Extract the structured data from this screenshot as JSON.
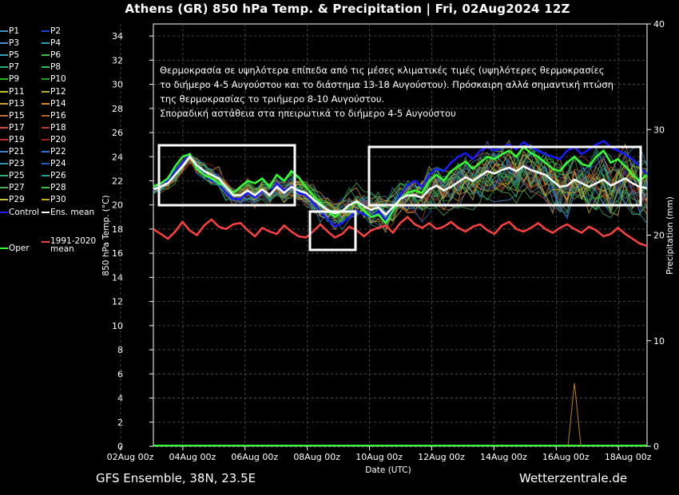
{
  "title": "Athens  (GR)  850 hPa Temp. & Precipitation | Fri, 02Aug2024 12Z",
  "footer": {
    "model": "GFS Ensemble, 38N, 23.5E",
    "source": "Wetterzentrale.de"
  },
  "colors": {
    "control": "#1a1aff",
    "ens_mean": "#ffffff",
    "climate_mean": "#ff4040",
    "oper": "#33ff33",
    "boxes": "#ffffff"
  },
  "legend": [
    {
      "label": "P1",
      "color": "#3f8fbf"
    },
    {
      "label": "P2",
      "color": "#1f3fd0"
    },
    {
      "label": "P3",
      "color": "#4a8fd0"
    },
    {
      "label": "P4",
      "color": "#2aa0b0"
    },
    {
      "label": "P5",
      "color": "#30a0c0"
    },
    {
      "label": "P6",
      "color": "#3fbf3f"
    },
    {
      "label": "P7",
      "color": "#1fb080"
    },
    {
      "label": "P8",
      "color": "#30c060"
    },
    {
      "label": "P9",
      "color": "#20c020"
    },
    {
      "label": "P10",
      "color": "#20a020"
    },
    {
      "label": "P11",
      "color": "#c0c020"
    },
    {
      "label": "P12",
      "color": "#b0b030"
    },
    {
      "label": "P13",
      "color": "#d0a030"
    },
    {
      "label": "P14",
      "color": "#d09020"
    },
    {
      "label": "P15",
      "color": "#c07030"
    },
    {
      "label": "P16",
      "color": "#c06020"
    },
    {
      "label": "P17",
      "color": "#d05030"
    },
    {
      "label": "P18",
      "color": "#b04020"
    },
    {
      "label": "P19",
      "color": "#c03030"
    },
    {
      "label": "P20",
      "color": "#a02020"
    },
    {
      "label": "P21",
      "color": "#4080c0"
    },
    {
      "label": "P22",
      "color": "#3070d0"
    },
    {
      "label": "P23",
      "color": "#3090b0"
    },
    {
      "label": "P24",
      "color": "#2060c0"
    },
    {
      "label": "P25",
      "color": "#30b070"
    },
    {
      "label": "P26",
      "color": "#20a090"
    },
    {
      "label": "P27",
      "color": "#50b050"
    },
    {
      "label": "P28",
      "color": "#40c040"
    },
    {
      "label": "P29",
      "color": "#d0c040"
    },
    {
      "label": "P30",
      "color": "#c0b020"
    },
    {
      "label": "Control",
      "color": "#1a1aff"
    },
    {
      "label": "Ens. mean",
      "color": "#ffffff"
    },
    {
      "label": "Oper",
      "color": "#33ff33"
    },
    {
      "label": "1991-2020 mean",
      "color": "#ff4040"
    }
  ],
  "annotation": [
    "Θερμοκρασία σε υψηλότερα επίπεδα από τις μέσες κλιματικές τιμές (υψηλότερες θερμοκρασίες",
    "το διήμερο 4-5 Αυγούστου και το διάστημα 13-18 Αυγούστου). Πρόσκαιρη αλλά σημαντική πτώση",
    "της θερμοκρασίας το τριήμερο 8-10 Αυγούστου.",
    "Σποραδική αστάθεια στα ηπειρωτικά το διήμερο 4-5 Αυγούστου"
  ],
  "chart_data": {
    "type": "line",
    "xlabel": "Date (UTC)",
    "ylabel": "850 hPa Temp. (°C)",
    "y2label": "Precipitation (mm)",
    "ylim": [
      0,
      35
    ],
    "y2lim": [
      0,
      40
    ],
    "yticks": [
      0,
      2,
      4,
      6,
      8,
      10,
      12,
      14,
      16,
      18,
      20,
      22,
      24,
      26,
      28,
      30,
      32,
      34
    ],
    "y2ticks": [
      0,
      10,
      20,
      30,
      40
    ],
    "x_ticks": [
      "02Aug 00z",
      "04Aug 00z",
      "06Aug 00z",
      "08Aug 00z",
      "10Aug 00z",
      "12Aug 00z",
      "14Aug 00z",
      "16Aug 00z",
      "18Aug 00z"
    ],
    "x_start": "2024-08-02T00:00Z",
    "x_step_hours": 6,
    "grid": true,
    "series": [
      {
        "name": "Ens. mean",
        "values": [
          21.3,
          21.5,
          21.8,
          22.5,
          23.2,
          24.0,
          23.3,
          22.8,
          22.5,
          22.2,
          21.5,
          20.8,
          20.8,
          21.2,
          20.8,
          21.3,
          20.8,
          21.5,
          21.0,
          21.5,
          21.2,
          21.0,
          20.5,
          20.0,
          19.6,
          19.3,
          19.5,
          20.0,
          20.3,
          19.9,
          19.6,
          19.8,
          19.2,
          19.8,
          20.5,
          20.8,
          20.8,
          20.6,
          21.3,
          21.6,
          21.2,
          21.5,
          21.9,
          22.3,
          22.0,
          22.4,
          22.8,
          22.6,
          22.9,
          23.1,
          22.8,
          23.2,
          22.9,
          22.7,
          22.5,
          22.0,
          21.5,
          21.6,
          22.1,
          21.8,
          21.5,
          21.8,
          22.1,
          21.6,
          21.9,
          22.2,
          21.8,
          21.5,
          21.4
        ]
      },
      {
        "name": "Control",
        "values": [
          21.2,
          21.8,
          22.0,
          22.8,
          23.5,
          24.2,
          23.0,
          22.6,
          22.0,
          21.8,
          21.0,
          20.5,
          20.5,
          21.0,
          20.6,
          21.2,
          20.8,
          21.8,
          21.2,
          21.6,
          21.0,
          20.8,
          20.2,
          19.5,
          18.8,
          18.2,
          18.5,
          19.0,
          19.5,
          19.2,
          19.0,
          19.5,
          18.8,
          19.6,
          20.8,
          21.6,
          22.0,
          21.5,
          22.5,
          23.0,
          22.8,
          23.5,
          24.0,
          24.3,
          23.8,
          24.5,
          24.8,
          24.5,
          24.8,
          25.0,
          24.6,
          25.2,
          24.8,
          24.5,
          24.2,
          24.0,
          23.8,
          24.5,
          24.8,
          24.2,
          24.6,
          25.0,
          25.3,
          24.8,
          24.5,
          24.2,
          23.8,
          23.2,
          22.5
        ]
      },
      {
        "name": "Oper",
        "values": [
          21.5,
          21.8,
          22.2,
          23.2,
          24.0,
          24.2,
          23.0,
          22.5,
          22.2,
          21.8,
          21.5,
          21.0,
          21.5,
          22.0,
          21.8,
          22.2,
          21.5,
          22.5,
          22.0,
          22.8,
          22.3,
          21.5,
          20.8,
          20.2,
          19.5,
          19.0,
          19.5,
          20.0,
          20.2,
          19.5,
          19.0,
          19.2,
          18.5,
          19.5,
          20.5,
          21.0,
          21.2,
          21.0,
          22.0,
          22.5,
          22.0,
          22.8,
          23.2,
          23.6,
          23.0,
          23.5,
          24.0,
          23.8,
          24.2,
          24.5,
          24.0,
          24.8,
          24.3,
          24.0,
          23.5,
          23.0,
          22.8,
          23.5,
          24.0,
          23.4,
          23.2,
          24.0,
          24.5,
          23.5,
          23.8,
          23.2,
          22.5,
          22.0,
          22.5
        ]
      },
      {
        "name": "1991-2020 mean",
        "values": [
          18.0,
          17.6,
          17.2,
          17.8,
          18.6,
          17.9,
          17.5,
          18.3,
          18.8,
          18.2,
          18.0,
          18.4,
          18.5,
          17.9,
          17.4,
          18.1,
          17.8,
          17.6,
          18.3,
          17.8,
          17.4,
          17.3,
          17.8,
          18.4,
          17.8,
          17.3,
          17.6,
          18.2,
          17.9,
          17.4,
          17.9,
          18.1,
          18.3,
          17.7,
          18.5,
          19.0,
          18.4,
          18.1,
          18.5,
          18.0,
          18.2,
          18.6,
          18.1,
          17.8,
          18.2,
          18.4,
          17.9,
          17.6,
          18.3,
          18.6,
          18.0,
          17.8,
          18.1,
          18.5,
          18.0,
          17.7,
          18.1,
          18.4,
          18.0,
          17.7,
          18.2,
          17.9,
          17.4,
          17.6,
          18.1,
          17.6,
          17.2,
          16.8,
          16.6
        ]
      }
    ],
    "precipitation": {
      "peak_mm": 6,
      "peak_at": "16Aug"
    },
    "rectangles": [
      {
        "label": "box-1",
        "x_from": "02Aug 18z",
        "x_to": "06Aug 12z",
        "y_from": 20,
        "y_to": 24.9
      },
      {
        "label": "box-2",
        "x_from": "08Aug 12z",
        "x_to": "09Aug 18z",
        "y_from": 16.2,
        "y_to": 19.5
      },
      {
        "label": "box-3",
        "x_from": "10Aug 00z",
        "x_to": "18Aug 12z",
        "y_from": 20,
        "y_to": 24.8
      }
    ]
  }
}
